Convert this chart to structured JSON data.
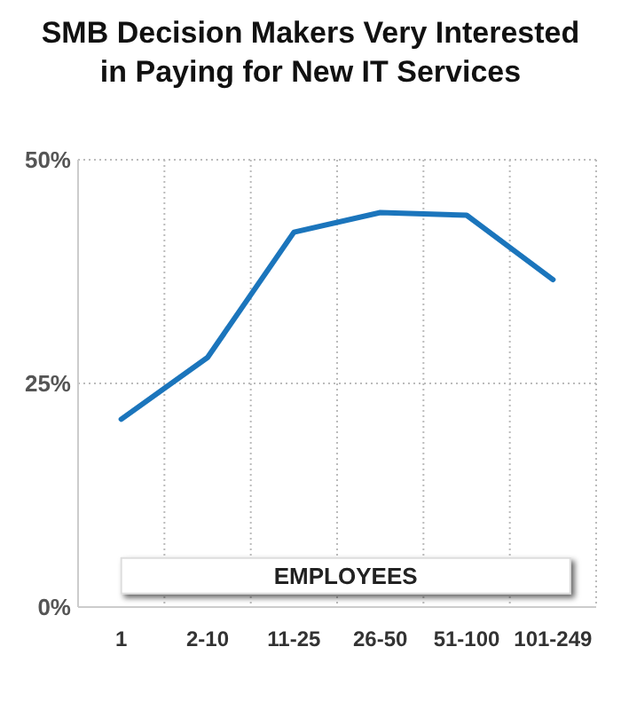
{
  "chart_data": {
    "type": "line",
    "title": "SMB Decision Makers Very Interested in Paying for New IT Services",
    "xlabel": "EMPLOYEES",
    "categories": [
      "1",
      "2-10",
      "11-25",
      "26-50",
      "51-100",
      "101-249"
    ],
    "series": [
      {
        "color": "#1b75bc",
        "values": [
          21.0,
          27.9,
          41.9,
          44.1,
          43.8,
          36.6
        ]
      }
    ],
    "ylim": [
      0,
      50
    ],
    "yticks": [
      {
        "value": 0,
        "label": "0%"
      },
      {
        "value": 25,
        "label": "25%"
      },
      {
        "value": 50,
        "label": "50%"
      }
    ],
    "grid": true,
    "marker": "none",
    "line_style": "solid"
  }
}
